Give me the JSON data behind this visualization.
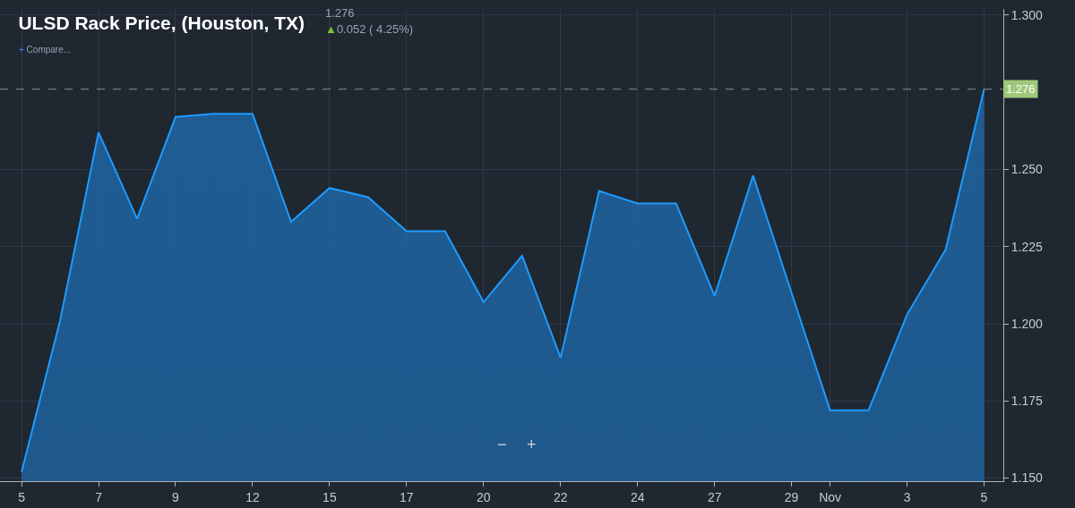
{
  "chart_data": {
    "type": "area",
    "title": "ULSD Rack Price, (Houston, TX)",
    "annotations": [
      "1.276",
      "▲0.052 ( 4.25%)",
      "+ Compare...",
      "−",
      "+"
    ],
    "categories": [
      "5",
      null,
      "7",
      null,
      "9",
      null,
      "12",
      null,
      "15",
      null,
      "17",
      null,
      "20",
      null,
      "22",
      null,
      "24",
      null,
      "27",
      null,
      "29",
      "Nov",
      null,
      "3",
      null,
      "5"
    ],
    "series": [
      {
        "color": "#1e9bff",
        "values": [
          1.152,
          1.201,
          1.262,
          1.234,
          1.267,
          1.268,
          1.268,
          1.233,
          1.244,
          1.241,
          1.23,
          1.23,
          1.207,
          1.222,
          1.189,
          1.243,
          1.239,
          1.239,
          1.209,
          1.248,
          1.21,
          1.172,
          1.172,
          1.203,
          1.224,
          1.276
        ]
      }
    ],
    "ylim": [
      1.149,
      1.302
    ],
    "yticks": [
      {
        "value": 1.15,
        "label": "1.150"
      },
      {
        "value": 1.175,
        "label": "1.175"
      },
      {
        "value": 1.2,
        "label": "1.200"
      },
      {
        "value": 1.225,
        "label": "1.225"
      },
      {
        "value": 1.25,
        "label": "1.250"
      },
      {
        "value": 1.3,
        "label": "1.300"
      }
    ],
    "ref_lines": [
      {
        "axis": "y",
        "value": 1.276,
        "label": "1.276",
        "color": "#8a9099",
        "line_style": "dashed"
      }
    ],
    "grid": true,
    "marker": "none",
    "line_style": "solid"
  }
}
